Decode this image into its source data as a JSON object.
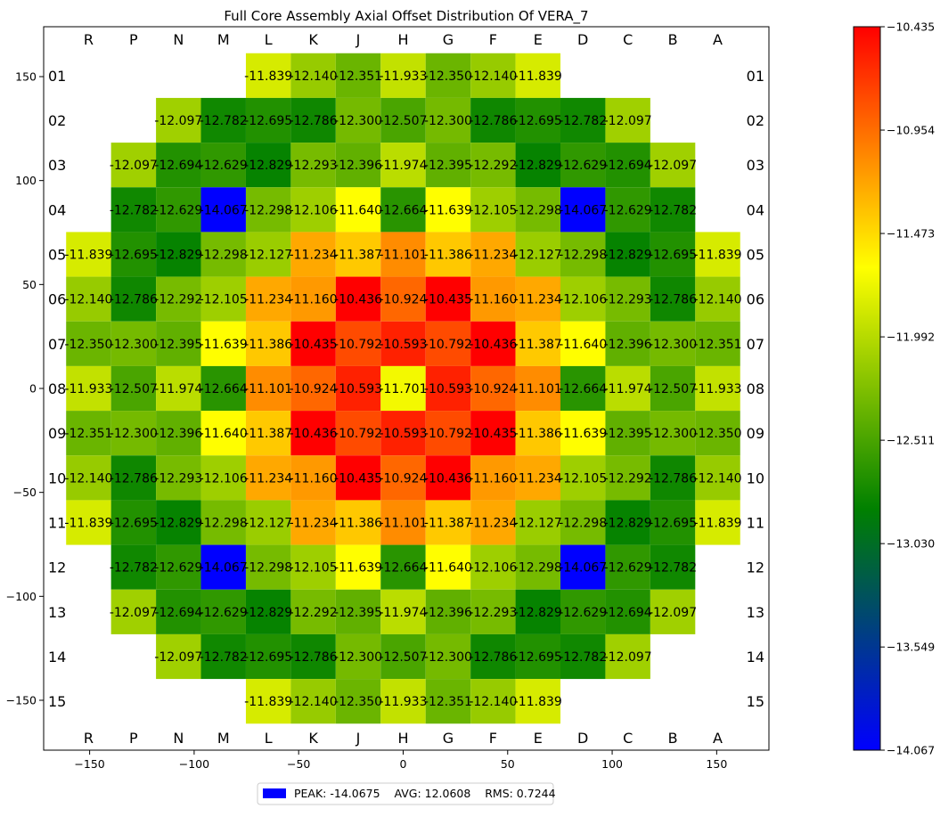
{
  "chart_data": {
    "type": "heatmap",
    "title": "Full Core Assembly Axial Offset Distribution Of VERA_7",
    "columns": [
      "R",
      "P",
      "N",
      "M",
      "L",
      "K",
      "J",
      "H",
      "G",
      "F",
      "E",
      "D",
      "C",
      "B",
      "A"
    ],
    "rows": [
      "01",
      "02",
      "03",
      "04",
      "05",
      "06",
      "07",
      "08",
      "09",
      "10",
      "11",
      "12",
      "13",
      "14",
      "15"
    ],
    "values": [
      [
        null,
        null,
        null,
        null,
        -11.839,
        -12.14,
        -12.351,
        -11.933,
        -12.35,
        -12.14,
        -11.839,
        null,
        null,
        null,
        null
      ],
      [
        null,
        null,
        -12.097,
        -12.782,
        -12.695,
        -12.786,
        -12.3,
        -12.507,
        -12.3,
        -12.786,
        -12.695,
        -12.782,
        -12.097,
        null,
        null
      ],
      [
        null,
        -12.097,
        -12.694,
        -12.629,
        -12.829,
        -12.293,
        -12.396,
        -11.974,
        -12.395,
        -12.292,
        -12.829,
        -12.629,
        -12.694,
        -12.097,
        null
      ],
      [
        null,
        -12.782,
        -12.629,
        -14.067,
        -12.298,
        -12.106,
        -11.64,
        -12.664,
        -11.639,
        -12.105,
        -12.298,
        -14.067,
        -12.629,
        -12.782,
        null
      ],
      [
        -11.839,
        -12.695,
        -12.829,
        -12.298,
        -12.127,
        -11.234,
        -11.387,
        -11.101,
        -11.386,
        -11.234,
        -12.127,
        -12.298,
        -12.829,
        -12.695,
        -11.839
      ],
      [
        -12.14,
        -12.786,
        -12.292,
        -12.105,
        -11.234,
        -11.16,
        -10.436,
        -10.924,
        -10.435,
        -11.16,
        -11.234,
        -12.106,
        -12.293,
        -12.786,
        -12.14
      ],
      [
        -12.35,
        -12.3,
        -12.395,
        -11.639,
        -11.386,
        -10.435,
        -10.792,
        -10.593,
        -10.792,
        -10.436,
        -11.387,
        -11.64,
        -12.396,
        -12.3,
        -12.351
      ],
      [
        -11.933,
        -12.507,
        -11.974,
        -12.664,
        -11.101,
        -10.924,
        -10.593,
        -11.701,
        -10.593,
        -10.924,
        -11.101,
        -12.664,
        -11.974,
        -12.507,
        -11.933
      ],
      [
        -12.351,
        -12.3,
        -12.396,
        -11.64,
        -11.387,
        -10.436,
        -10.792,
        -10.593,
        -10.792,
        -10.435,
        -11.386,
        -11.639,
        -12.395,
        -12.3,
        -12.35
      ],
      [
        -12.14,
        -12.786,
        -12.293,
        -12.106,
        -11.234,
        -11.16,
        -10.435,
        -10.924,
        -10.436,
        -11.16,
        -11.234,
        -12.105,
        -12.292,
        -12.786,
        -12.14
      ],
      [
        -11.839,
        -12.695,
        -12.829,
        -12.298,
        -12.127,
        -11.234,
        -11.386,
        -11.101,
        -11.387,
        -11.234,
        -12.127,
        -12.298,
        -12.829,
        -12.695,
        -11.839
      ],
      [
        null,
        -12.782,
        -12.629,
        -14.067,
        -12.298,
        -12.105,
        -11.639,
        -12.664,
        -11.64,
        -12.106,
        -12.298,
        -14.067,
        -12.629,
        -12.782,
        null
      ],
      [
        null,
        -12.097,
        -12.694,
        -12.629,
        -12.829,
        -12.292,
        -12.395,
        -11.974,
        -12.396,
        -12.293,
        -12.829,
        -12.629,
        -12.694,
        -12.097,
        null
      ],
      [
        null,
        null,
        -12.097,
        -12.782,
        -12.695,
        -12.786,
        -12.3,
        -12.507,
        -12.3,
        -12.786,
        -12.695,
        -12.782,
        -12.097,
        null,
        null
      ],
      [
        null,
        null,
        null,
        null,
        -11.839,
        -12.14,
        -12.35,
        -11.933,
        -12.351,
        -12.14,
        -11.839,
        null,
        null,
        null,
        null
      ]
    ],
    "xlim": [
      -172,
      175
    ],
    "ylim": [
      -174,
      174
    ],
    "x_ticks": [
      "−150",
      "−100",
      "−50",
      "0",
      "50",
      "100",
      "150"
    ],
    "x_tick_values": [
      -150,
      -100,
      -50,
      0,
      50,
      100,
      150
    ],
    "y_ticks": [
      "150",
      "100",
      "50",
      "0",
      "−50",
      "−100",
      "−150"
    ],
    "y_tick_values": [
      150,
      100,
      50,
      0,
      -50,
      -100,
      -150
    ],
    "colorbar": {
      "min": -14.067,
      "max": -10.435,
      "ticks": [
        "−10.435",
        "−10.954",
        "−11.473",
        "−11.992",
        "−12.511",
        "−13.030",
        "−13.549",
        "−14.067"
      ],
      "tick_values": [
        -10.435,
        -10.954,
        -11.473,
        -11.992,
        -12.511,
        -13.03,
        -13.549,
        -14.067
      ],
      "colors": [
        "#0000ff",
        "#008000",
        "#ffff00",
        "#ff0000"
      ]
    },
    "legend": {
      "text": "PEAK: -14.0675    AVG: 12.0608    RMS: 0.7244",
      "swatch_color": "#0000ff",
      "placement": "bottom-center"
    },
    "grid": false
  }
}
